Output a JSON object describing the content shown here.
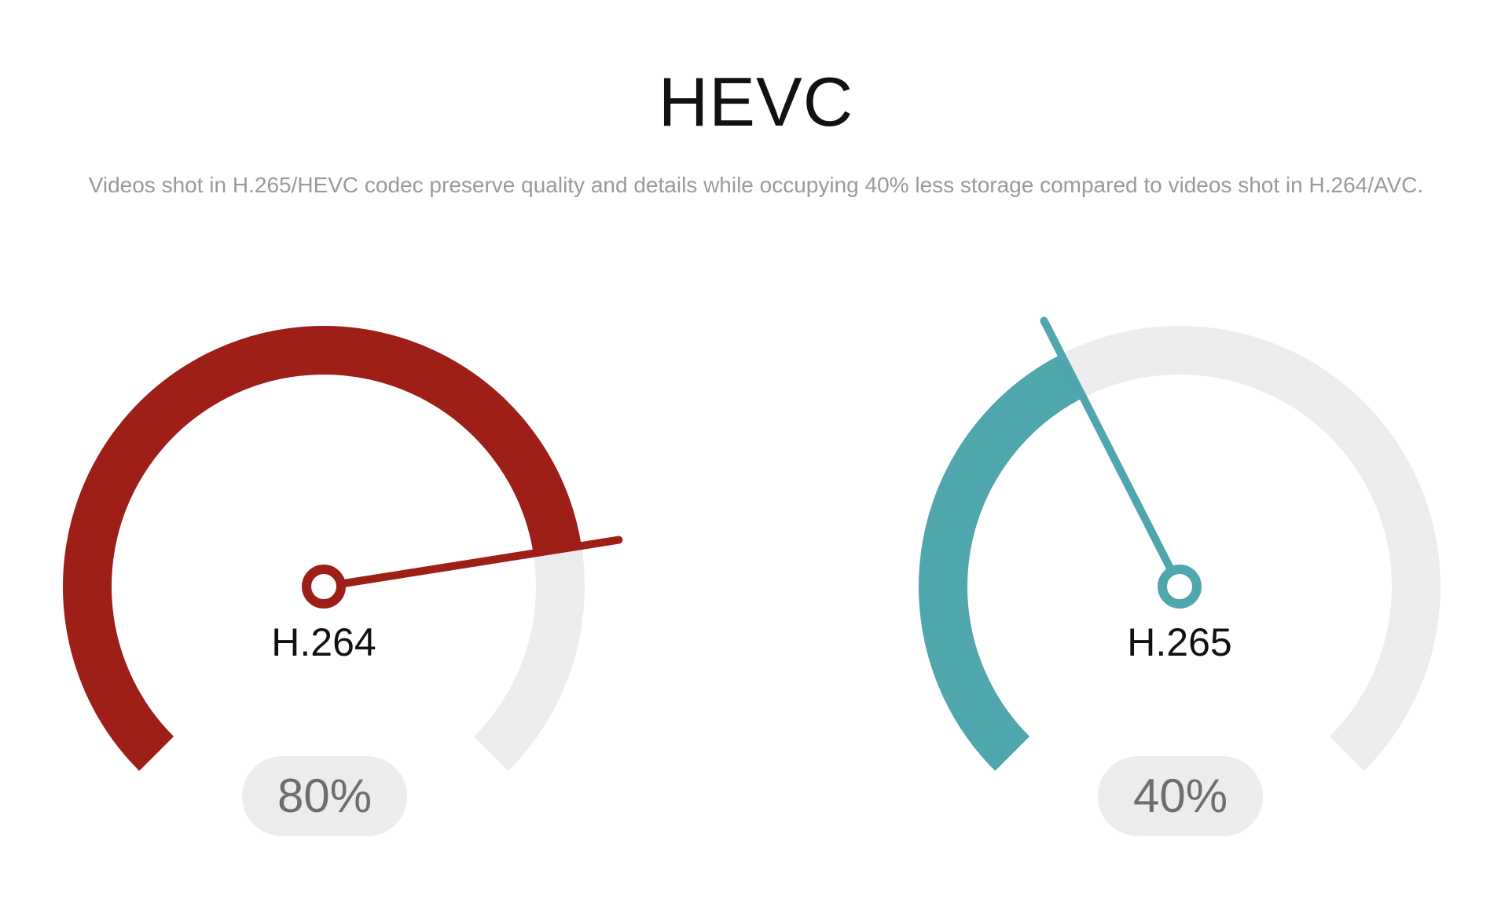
{
  "header": {
    "title": "HEVC",
    "subtitle": "Videos shot in H.265/HEVC codec preserve quality and details while occupying 40% less storage compared to videos shot in H.264/AVC."
  },
  "gauges": [
    {
      "label": "H.264",
      "value_text": "80%",
      "fraction": 0.8,
      "color": "#9e1f18",
      "track_color": "#ececee"
    },
    {
      "label": "H.265",
      "value_text": "40%",
      "fraction": 0.4,
      "color": "#4fa6ac",
      "track_color": "#ececee"
    }
  ]
}
